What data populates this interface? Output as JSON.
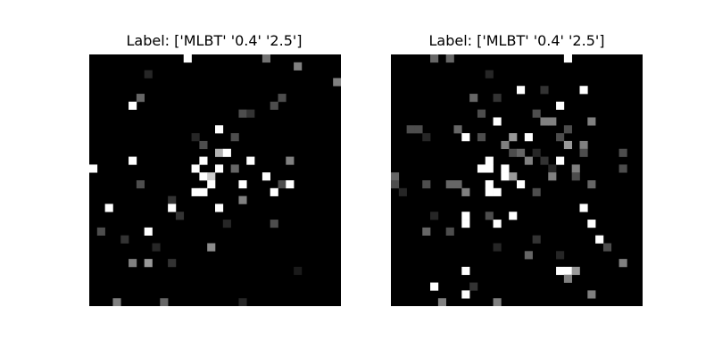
{
  "figure": {
    "background": "#ffffff",
    "colormap": "gray",
    "grid_size": 32,
    "panels": [
      {
        "title": "Label: ['MLBT' '0.4' '2.5']",
        "pixels": [
          {
            "c": 12,
            "r": 0,
            "v": 1.0
          },
          {
            "c": 22,
            "r": 0,
            "v": 0.45
          },
          {
            "c": 26,
            "r": 1,
            "v": 0.5
          },
          {
            "c": 7,
            "r": 2,
            "v": 0.15
          },
          {
            "c": 31,
            "r": 3,
            "v": 0.5
          },
          {
            "c": 6,
            "r": 5,
            "v": 0.4
          },
          {
            "c": 24,
            "r": 5,
            "v": 0.3
          },
          {
            "c": 5,
            "r": 6,
            "v": 1.0
          },
          {
            "c": 23,
            "r": 6,
            "v": 0.3
          },
          {
            "c": 19,
            "r": 7,
            "v": 0.3
          },
          {
            "c": 20,
            "r": 7,
            "v": 0.2
          },
          {
            "c": 16,
            "r": 9,
            "v": 1.0
          },
          {
            "c": 13,
            "r": 10,
            "v": 0.15
          },
          {
            "c": 18,
            "r": 10,
            "v": 0.3
          },
          {
            "c": 14,
            "r": 11,
            "v": 0.3
          },
          {
            "c": 16,
            "r": 12,
            "v": 0.7
          },
          {
            "c": 17,
            "r": 12,
            "v": 1.0
          },
          {
            "c": 5,
            "r": 13,
            "v": 1.0
          },
          {
            "c": 14,
            "r": 13,
            "v": 1.0
          },
          {
            "c": 20,
            "r": 13,
            "v": 1.0
          },
          {
            "c": 25,
            "r": 13,
            "v": 0.5
          },
          {
            "c": 0,
            "r": 14,
            "v": 1.0
          },
          {
            "c": 13,
            "r": 14,
            "v": 1.0
          },
          {
            "c": 16,
            "r": 14,
            "v": 1.0
          },
          {
            "c": 18,
            "r": 14,
            "v": 0.4
          },
          {
            "c": 14,
            "r": 15,
            "v": 1.0
          },
          {
            "c": 15,
            "r": 15,
            "v": 0.8
          },
          {
            "c": 22,
            "r": 15,
            "v": 1.0
          },
          {
            "c": 6,
            "r": 16,
            "v": 0.3
          },
          {
            "c": 15,
            "r": 16,
            "v": 1.0
          },
          {
            "c": 19,
            "r": 16,
            "v": 1.0
          },
          {
            "c": 24,
            "r": 16,
            "v": 0.3
          },
          {
            "c": 25,
            "r": 16,
            "v": 1.0
          },
          {
            "c": 13,
            "r": 17,
            "v": 1.0
          },
          {
            "c": 14,
            "r": 17,
            "v": 1.0
          },
          {
            "c": 23,
            "r": 17,
            "v": 1.0
          },
          {
            "c": 10,
            "r": 18,
            "v": 0.2
          },
          {
            "c": 19,
            "r": 18,
            "v": 0.5
          },
          {
            "c": 2,
            "r": 19,
            "v": 1.0
          },
          {
            "c": 10,
            "r": 19,
            "v": 1.0
          },
          {
            "c": 16,
            "r": 19,
            "v": 1.0
          },
          {
            "c": 11,
            "r": 20,
            "v": 0.2
          },
          {
            "c": 17,
            "r": 21,
            "v": 0.15
          },
          {
            "c": 23,
            "r": 21,
            "v": 0.3
          },
          {
            "c": 1,
            "r": 22,
            "v": 0.3
          },
          {
            "c": 7,
            "r": 22,
            "v": 1.0
          },
          {
            "c": 4,
            "r": 23,
            "v": 0.2
          },
          {
            "c": 8,
            "r": 24,
            "v": 0.15
          },
          {
            "c": 15,
            "r": 24,
            "v": 0.55
          },
          {
            "c": 5,
            "r": 26,
            "v": 0.5
          },
          {
            "c": 7,
            "r": 26,
            "v": 0.6
          },
          {
            "c": 10,
            "r": 26,
            "v": 0.2
          },
          {
            "c": 26,
            "r": 27,
            "v": 0.1
          },
          {
            "c": 3,
            "r": 31,
            "v": 0.5
          },
          {
            "c": 9,
            "r": 31,
            "v": 0.4
          },
          {
            "c": 19,
            "r": 31,
            "v": 0.15
          }
        ]
      },
      {
        "title": "Label: ['MLBT' '0.4' '2.5']",
        "pixels": [
          {
            "c": 5,
            "r": 0,
            "v": 0.4
          },
          {
            "c": 7,
            "r": 0,
            "v": 0.4
          },
          {
            "c": 22,
            "r": 0,
            "v": 1.0
          },
          {
            "c": 12,
            "r": 2,
            "v": 0.15
          },
          {
            "c": 16,
            "r": 4,
            "v": 1.0
          },
          {
            "c": 19,
            "r": 4,
            "v": 0.2
          },
          {
            "c": 24,
            "r": 4,
            "v": 1.0
          },
          {
            "c": 10,
            "r": 5,
            "v": 0.4
          },
          {
            "c": 13,
            "r": 5,
            "v": 0.2
          },
          {
            "c": 21,
            "r": 6,
            "v": 1.0
          },
          {
            "c": 11,
            "r": 7,
            "v": 0.3
          },
          {
            "c": 18,
            "r": 7,
            "v": 0.3
          },
          {
            "c": 13,
            "r": 8,
            "v": 1.0
          },
          {
            "c": 19,
            "r": 8,
            "v": 0.5
          },
          {
            "c": 20,
            "r": 8,
            "v": 0.5
          },
          {
            "c": 25,
            "r": 8,
            "v": 0.5
          },
          {
            "c": 2,
            "r": 9,
            "v": 0.3
          },
          {
            "c": 3,
            "r": 9,
            "v": 0.3
          },
          {
            "c": 8,
            "r": 9,
            "v": 0.4
          },
          {
            "c": 22,
            "r": 9,
            "v": 0.3
          },
          {
            "c": 4,
            "r": 10,
            "v": 0.15
          },
          {
            "c": 9,
            "r": 10,
            "v": 1.0
          },
          {
            "c": 11,
            "r": 10,
            "v": 0.3
          },
          {
            "c": 15,
            "r": 10,
            "v": 0.6
          },
          {
            "c": 17,
            "r": 10,
            "v": 1.0
          },
          {
            "c": 21,
            "r": 10,
            "v": 0.3
          },
          {
            "c": 14,
            "r": 11,
            "v": 0.5
          },
          {
            "c": 22,
            "r": 11,
            "v": 0.6
          },
          {
            "c": 24,
            "r": 11,
            "v": 0.5
          },
          {
            "c": 15,
            "r": 12,
            "v": 0.3
          },
          {
            "c": 16,
            "r": 12,
            "v": 0.4
          },
          {
            "c": 18,
            "r": 12,
            "v": 0.15
          },
          {
            "c": 24,
            "r": 12,
            "v": 0.3
          },
          {
            "c": 29,
            "r": 12,
            "v": 0.3
          },
          {
            "c": 12,
            "r": 13,
            "v": 1.0
          },
          {
            "c": 17,
            "r": 13,
            "v": 0.5
          },
          {
            "c": 19,
            "r": 13,
            "v": 0.2
          },
          {
            "c": 21,
            "r": 13,
            "v": 1.0
          },
          {
            "c": 11,
            "r": 14,
            "v": 1.0
          },
          {
            "c": 12,
            "r": 14,
            "v": 1.0
          },
          {
            "c": 14,
            "r": 14,
            "v": 1.0
          },
          {
            "c": 20,
            "r": 14,
            "v": 0.15
          },
          {
            "c": 23,
            "r": 14,
            "v": 0.5
          },
          {
            "c": 29,
            "r": 14,
            "v": 0.3
          },
          {
            "c": 0,
            "r": 15,
            "v": 0.4
          },
          {
            "c": 14,
            "r": 15,
            "v": 1.0
          },
          {
            "c": 15,
            "r": 15,
            "v": 0.6
          },
          {
            "c": 20,
            "r": 15,
            "v": 0.5
          },
          {
            "c": 23,
            "r": 15,
            "v": 0.3
          },
          {
            "c": 0,
            "r": 16,
            "v": 0.3
          },
          {
            "c": 4,
            "r": 16,
            "v": 0.3
          },
          {
            "c": 7,
            "r": 16,
            "v": 0.4
          },
          {
            "c": 8,
            "r": 16,
            "v": 0.4
          },
          {
            "c": 12,
            "r": 16,
            "v": 1.0
          },
          {
            "c": 16,
            "r": 16,
            "v": 1.0
          },
          {
            "c": 25,
            "r": 16,
            "v": 0.4
          },
          {
            "c": 1,
            "r": 17,
            "v": 0.15
          },
          {
            "c": 9,
            "r": 17,
            "v": 0.5
          },
          {
            "c": 12,
            "r": 17,
            "v": 1.0
          },
          {
            "c": 13,
            "r": 17,
            "v": 1.0
          },
          {
            "c": 18,
            "r": 17,
            "v": 0.3
          },
          {
            "c": 24,
            "r": 19,
            "v": 1.0
          },
          {
            "c": 5,
            "r": 20,
            "v": 0.15
          },
          {
            "c": 9,
            "r": 20,
            "v": 1.0
          },
          {
            "c": 12,
            "r": 20,
            "v": 0.3
          },
          {
            "c": 15,
            "r": 20,
            "v": 1.0
          },
          {
            "c": 9,
            "r": 21,
            "v": 1.0
          },
          {
            "c": 13,
            "r": 21,
            "v": 1.0
          },
          {
            "c": 25,
            "r": 21,
            "v": 1.0
          },
          {
            "c": 4,
            "r": 22,
            "v": 0.4
          },
          {
            "c": 7,
            "r": 22,
            "v": 0.3
          },
          {
            "c": 18,
            "r": 23,
            "v": 0.2
          },
          {
            "c": 26,
            "r": 23,
            "v": 1.0
          },
          {
            "c": 27,
            "r": 24,
            "v": 0.3
          },
          {
            "c": 13,
            "r": 24,
            "v": 0.15
          },
          {
            "c": 17,
            "r": 25,
            "v": 0.4
          },
          {
            "c": 21,
            "r": 25,
            "v": 0.15
          },
          {
            "c": 29,
            "r": 26,
            "v": 0.5
          },
          {
            "c": 9,
            "r": 27,
            "v": 1.0
          },
          {
            "c": 21,
            "r": 27,
            "v": 1.0
          },
          {
            "c": 22,
            "r": 27,
            "v": 1.0
          },
          {
            "c": 23,
            "r": 27,
            "v": 0.6
          },
          {
            "c": 22,
            "r": 28,
            "v": 0.5
          },
          {
            "c": 5,
            "r": 29,
            "v": 1.0
          },
          {
            "c": 10,
            "r": 29,
            "v": 0.2
          },
          {
            "c": 9,
            "r": 30,
            "v": 1.0
          },
          {
            "c": 25,
            "r": 30,
            "v": 0.5
          },
          {
            "c": 6,
            "r": 31,
            "v": 0.5
          },
          {
            "c": 13,
            "r": 31,
            "v": 0.5
          }
        ]
      }
    ]
  }
}
